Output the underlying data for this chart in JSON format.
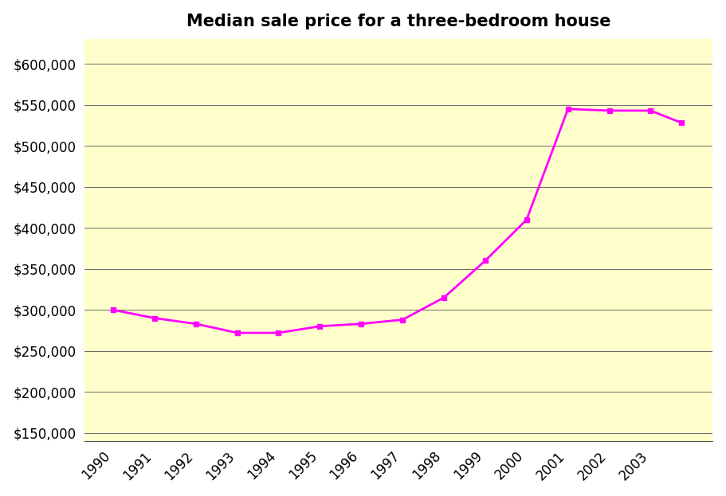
{
  "title": "Median sale price for a three-bedroom house",
  "years": [
    1990,
    1991,
    1992,
    1993,
    1994,
    1995,
    1996,
    1997,
    1998,
    1999,
    2000,
    2001,
    2002,
    2003,
    2003.75
  ],
  "values": [
    300000,
    290000,
    283000,
    272000,
    272000,
    280000,
    283000,
    288000,
    315000,
    360000,
    410000,
    545000,
    543000,
    543000,
    528000
  ],
  "line_color": "#FF00FF",
  "marker": "s",
  "marker_size": 5,
  "background_color": "#FFFFCC",
  "ylim_min": 140000,
  "ylim_max": 630000,
  "yticks": [
    150000,
    200000,
    250000,
    300000,
    350000,
    400000,
    450000,
    500000,
    550000,
    600000
  ],
  "xtick_labels": [
    "1990",
    "1991",
    "1992",
    "1993",
    "1994",
    "1995",
    "1996",
    "1997",
    "1998",
    "1999",
    "2000",
    "2001",
    "2002",
    "2003"
  ],
  "title_fontsize": 15,
  "axis_fontsize": 12,
  "grid_color": "#555555",
  "grid_linewidth": 0.6
}
